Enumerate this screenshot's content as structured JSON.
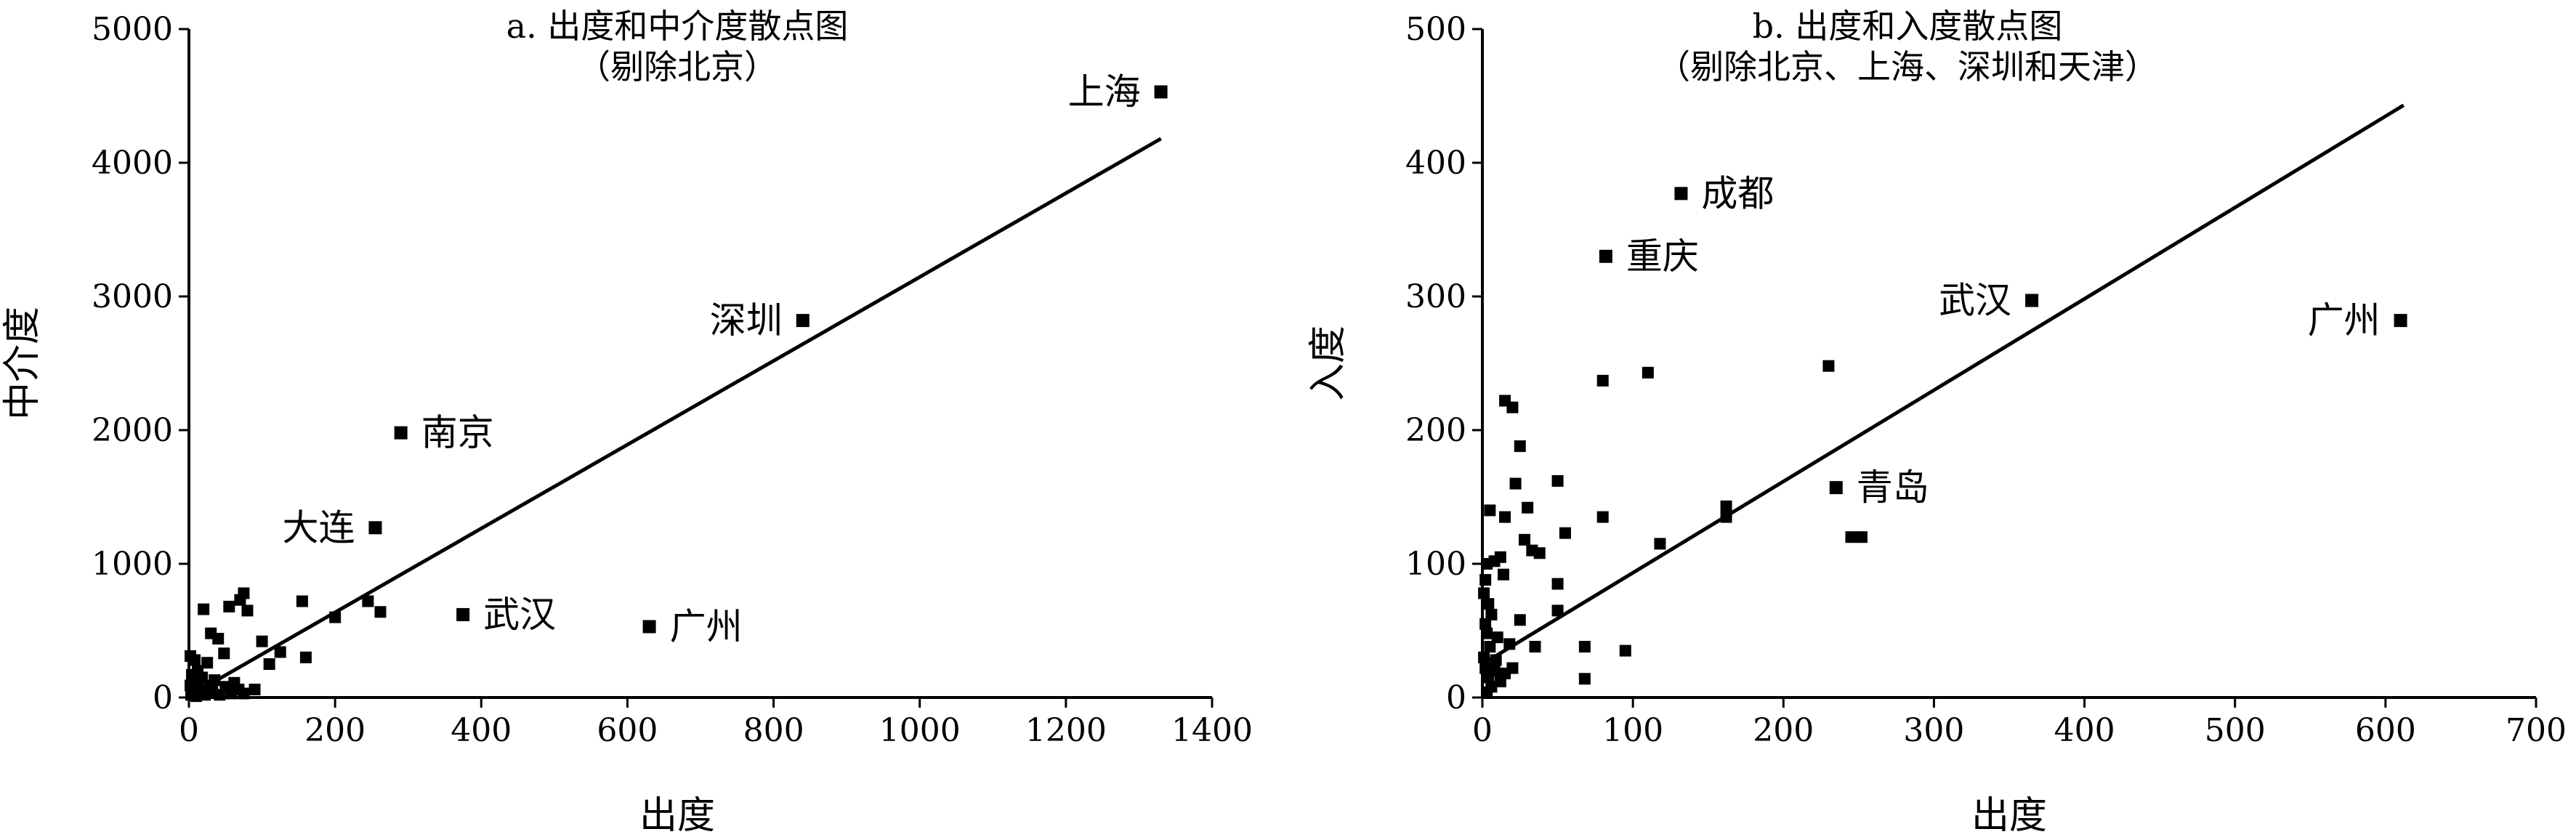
{
  "chart_data": [
    {
      "type": "scatter",
      "title": "a. 出度和中介度散点图",
      "subtitle": "（剔除北京）",
      "xlabel": "出度",
      "ylabel": "中介度",
      "xlim": [
        0,
        1400
      ],
      "ylim": [
        0,
        5000
      ],
      "xticks": [
        "0",
        "200",
        "400",
        "600",
        "800",
        "1000",
        "1200",
        "1400"
      ],
      "yticks": [
        "0",
        "1000",
        "2000",
        "3000",
        "4000",
        "5000"
      ],
      "grid": false,
      "legend": "none",
      "trendline": [
        [
          0,
          10
        ],
        [
          1330,
          4180
        ]
      ],
      "labeled_points": [
        {
          "label": "上海",
          "x": 1330,
          "y": 4530
        },
        {
          "label": "深圳",
          "x": 840,
          "y": 2820
        },
        {
          "label": "南京",
          "x": 290,
          "y": 1980
        },
        {
          "label": "大连",
          "x": 255,
          "y": 1270
        },
        {
          "label": "武汉",
          "x": 375,
          "y": 620
        },
        {
          "label": "广州",
          "x": 630,
          "y": 530
        }
      ],
      "points": [
        [
          2,
          310
        ],
        [
          8,
          280
        ],
        [
          12,
          200
        ],
        [
          20,
          660
        ],
        [
          25,
          260
        ],
        [
          30,
          480
        ],
        [
          40,
          440
        ],
        [
          48,
          330
        ],
        [
          55,
          680
        ],
        [
          70,
          730
        ],
        [
          75,
          780
        ],
        [
          80,
          650
        ],
        [
          90,
          60
        ],
        [
          100,
          420
        ],
        [
          110,
          250
        ],
        [
          125,
          340
        ],
        [
          155,
          720
        ],
        [
          160,
          300
        ],
        [
          200,
          600
        ],
        [
          245,
          720
        ],
        [
          262,
          640
        ],
        [
          3,
          20
        ],
        [
          5,
          60
        ],
        [
          6,
          120
        ],
        [
          10,
          10
        ],
        [
          12,
          80
        ],
        [
          15,
          40
        ],
        [
          18,
          150
        ],
        [
          22,
          20
        ],
        [
          28,
          90
        ],
        [
          32,
          50
        ],
        [
          35,
          130
        ],
        [
          42,
          20
        ],
        [
          50,
          80
        ],
        [
          58,
          30
        ],
        [
          62,
          110
        ],
        [
          68,
          60
        ],
        [
          75,
          30
        ],
        [
          4,
          170
        ],
        [
          2,
          90
        ]
      ]
    },
    {
      "type": "scatter",
      "title": "b. 出度和入度散点图",
      "subtitle": "（剔除北京、上海、深圳和天津）",
      "xlabel": "出度",
      "ylabel": "入度",
      "xlim": [
        0,
        700
      ],
      "ylim": [
        0,
        500
      ],
      "xticks": [
        "0",
        "100",
        "200",
        "300",
        "400",
        "500",
        "600",
        "700"
      ],
      "yticks": [
        "0",
        "100",
        "200",
        "300",
        "400",
        "500"
      ],
      "grid": false,
      "legend": "none",
      "trendline": [
        [
          0,
          25
        ],
        [
          612,
          443
        ]
      ],
      "labeled_points": [
        {
          "label": "成都",
          "x": 132,
          "y": 377
        },
        {
          "label": "重庆",
          "x": 82,
          "y": 330
        },
        {
          "label": "武汉",
          "x": 365,
          "y": 297
        },
        {
          "label": "广州",
          "x": 610,
          "y": 282
        },
        {
          "label": "青岛",
          "x": 235,
          "y": 157
        }
      ],
      "points": [
        [
          15,
          222
        ],
        [
          20,
          217
        ],
        [
          25,
          188
        ],
        [
          22,
          160
        ],
        [
          50,
          162
        ],
        [
          80,
          237
        ],
        [
          110,
          243
        ],
        [
          230,
          248
        ],
        [
          5,
          140
        ],
        [
          15,
          135
        ],
        [
          30,
          142
        ],
        [
          55,
          123
        ],
        [
          80,
          135
        ],
        [
          118,
          115
        ],
        [
          162,
          143
        ],
        [
          162,
          135
        ],
        [
          245,
          120
        ],
        [
          252,
          120
        ],
        [
          28,
          118
        ],
        [
          33,
          110
        ],
        [
          38,
          108
        ],
        [
          3,
          100
        ],
        [
          8,
          102
        ],
        [
          12,
          105
        ],
        [
          14,
          92
        ],
        [
          50,
          85
        ],
        [
          2,
          88
        ],
        [
          1,
          78
        ],
        [
          4,
          70
        ],
        [
          6,
          62
        ],
        [
          10,
          45
        ],
        [
          25,
          58
        ],
        [
          50,
          65
        ],
        [
          18,
          40
        ],
        [
          35,
          38
        ],
        [
          68,
          38
        ],
        [
          95,
          35
        ],
        [
          8,
          20
        ],
        [
          15,
          18
        ],
        [
          20,
          22
        ],
        [
          68,
          14
        ],
        [
          2,
          55
        ],
        [
          3,
          48
        ],
        [
          5,
          38
        ],
        [
          1,
          30
        ],
        [
          2,
          22
        ],
        [
          4,
          15
        ],
        [
          6,
          8
        ],
        [
          3,
          4
        ],
        [
          9,
          28
        ],
        [
          12,
          12
        ]
      ]
    }
  ]
}
